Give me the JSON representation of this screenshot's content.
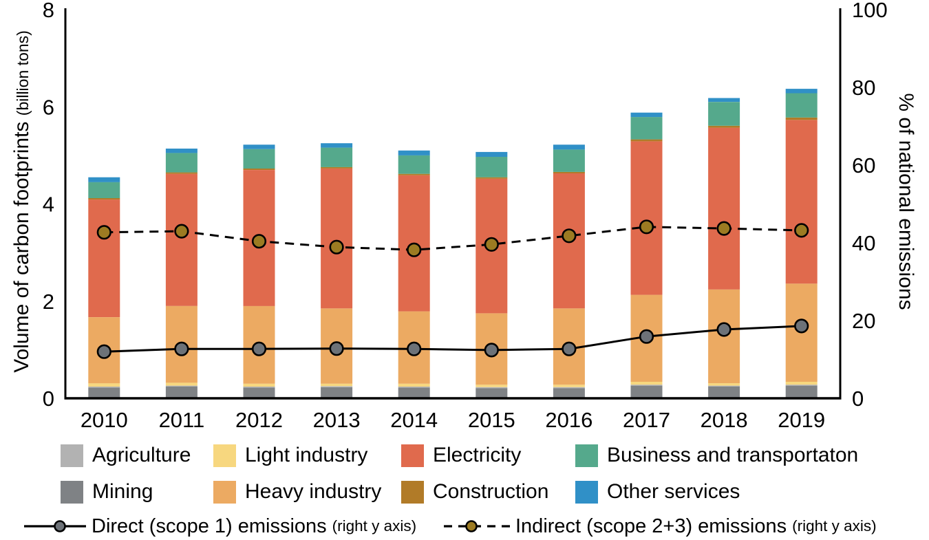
{
  "chart_data": {
    "type": "bar",
    "stacked": true,
    "grid": false,
    "x_categories": [
      "2010",
      "2011",
      "2012",
      "2013",
      "2014",
      "2015",
      "2016",
      "2017",
      "2018",
      "2019"
    ],
    "left_axis": {
      "label_main": "Volume of carbon footprints",
      "label_sub": "(billion tons)",
      "ticks": [
        0,
        2,
        4,
        6,
        8
      ],
      "range": [
        0,
        8
      ]
    },
    "right_axis": {
      "label": "% of national emissions",
      "ticks": [
        0,
        20,
        40,
        60,
        80,
        100
      ],
      "range": [
        0,
        100
      ]
    },
    "bar_series": [
      {
        "name": "Mining",
        "color": "#7f8285",
        "values": [
          0.22,
          0.24,
          0.22,
          0.23,
          0.22,
          0.21,
          0.21,
          0.26,
          0.24,
          0.26
        ]
      },
      {
        "name": "Agriculture",
        "color": "#b2b2b2",
        "values": [
          0.02,
          0.02,
          0.02,
          0.02,
          0.02,
          0.02,
          0.02,
          0.02,
          0.02,
          0.02
        ]
      },
      {
        "name": "Light industry",
        "color": "#f7d77f",
        "values": [
          0.07,
          0.06,
          0.06,
          0.05,
          0.06,
          0.05,
          0.05,
          0.06,
          0.05,
          0.06
        ]
      },
      {
        "name": "Heavy industry",
        "color": "#ecaa62",
        "values": [
          1.36,
          1.58,
          1.6,
          1.55,
          1.49,
          1.47,
          1.57,
          1.79,
          1.93,
          2.02
        ]
      },
      {
        "name": "Electricity",
        "color": "#e06a4d",
        "values": [
          2.42,
          2.72,
          2.8,
          2.88,
          2.8,
          2.77,
          2.78,
          3.16,
          3.33,
          3.37
        ]
      },
      {
        "name": "Construction",
        "color": "#b17b28",
        "values": [
          0.03,
          0.03,
          0.03,
          0.03,
          0.03,
          0.03,
          0.03,
          0.04,
          0.04,
          0.05
        ]
      },
      {
        "name": "Business and transportaton",
        "color": "#55a98c",
        "values": [
          0.33,
          0.4,
          0.4,
          0.4,
          0.38,
          0.42,
          0.46,
          0.46,
          0.49,
          0.5
        ]
      },
      {
        "name": "Other services",
        "color": "#3090c7",
        "values": [
          0.1,
          0.09,
          0.09,
          0.09,
          0.1,
          0.1,
          0.1,
          0.09,
          0.08,
          0.09
        ]
      }
    ],
    "line_series": [
      {
        "name": "Direct (scope 1) emissions",
        "axis_note": "(right y axis)",
        "style": "solid",
        "line_color": "#000000",
        "marker_fill": "#6d7278",
        "values": [
          12.0,
          12.7,
          12.7,
          12.8,
          12.7,
          12.4,
          12.7,
          15.9,
          17.7,
          18.6
        ]
      },
      {
        "name": "Indirect (scope 2+3) emissions",
        "axis_note": "(right y axis)",
        "style": "dashed",
        "line_color": "#000000",
        "marker_fill": "#9c7b22",
        "values": [
          42.7,
          43.0,
          40.4,
          38.9,
          38.2,
          39.6,
          41.8,
          44.1,
          43.7,
          43.2
        ]
      }
    ]
  }
}
